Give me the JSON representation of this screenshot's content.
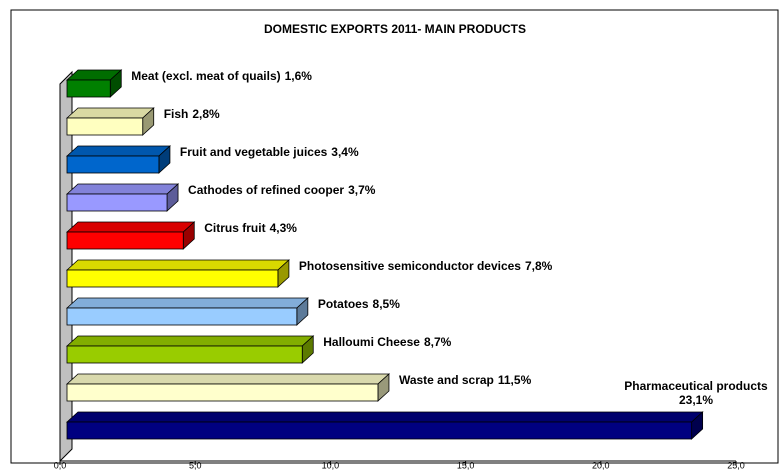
{
  "chart_data": {
    "type": "bar",
    "orientation": "horizontal",
    "title": "DOMESTIC EXPORTS 2011- MAIN PRODUCTS",
    "categories": [
      "Meat (excl. meat of quails)",
      "Fish",
      "Fruit and vegetable juices",
      "Cathodes of refined cooper",
      "Citrus fruit",
      "Photosensitive semiconductor devices",
      "Potatoes",
      "Halloumi Cheese",
      "Waste and scrap",
      "Pharmaceutical products"
    ],
    "values": [
      1.6,
      2.8,
      3.4,
      3.7,
      4.3,
      7.8,
      8.5,
      8.7,
      11.5,
      23.1
    ],
    "value_labels": [
      "1,6%",
      "2,8%",
      "3,4%",
      "3,7%",
      "4,3%",
      "7,8%",
      "8,5%",
      "8,7%",
      "11,5%",
      "23,1%"
    ],
    "colors": [
      "#008000",
      "#ffffc0",
      "#0066cc",
      "#9999ff",
      "#ff0000",
      "#ffff00",
      "#99ccff",
      "#99cc00",
      "#ffffcc",
      "#000080"
    ],
    "xlim": [
      0,
      25
    ],
    "xticks": [
      {
        "value": 0,
        "label": "0,0"
      },
      {
        "value": 5,
        "label": "5,0"
      },
      {
        "value": 10,
        "label": "10,0"
      },
      {
        "value": 15,
        "label": "15,0"
      },
      {
        "value": 20,
        "label": "20,0"
      },
      {
        "value": 25,
        "label": "25,0"
      }
    ]
  }
}
